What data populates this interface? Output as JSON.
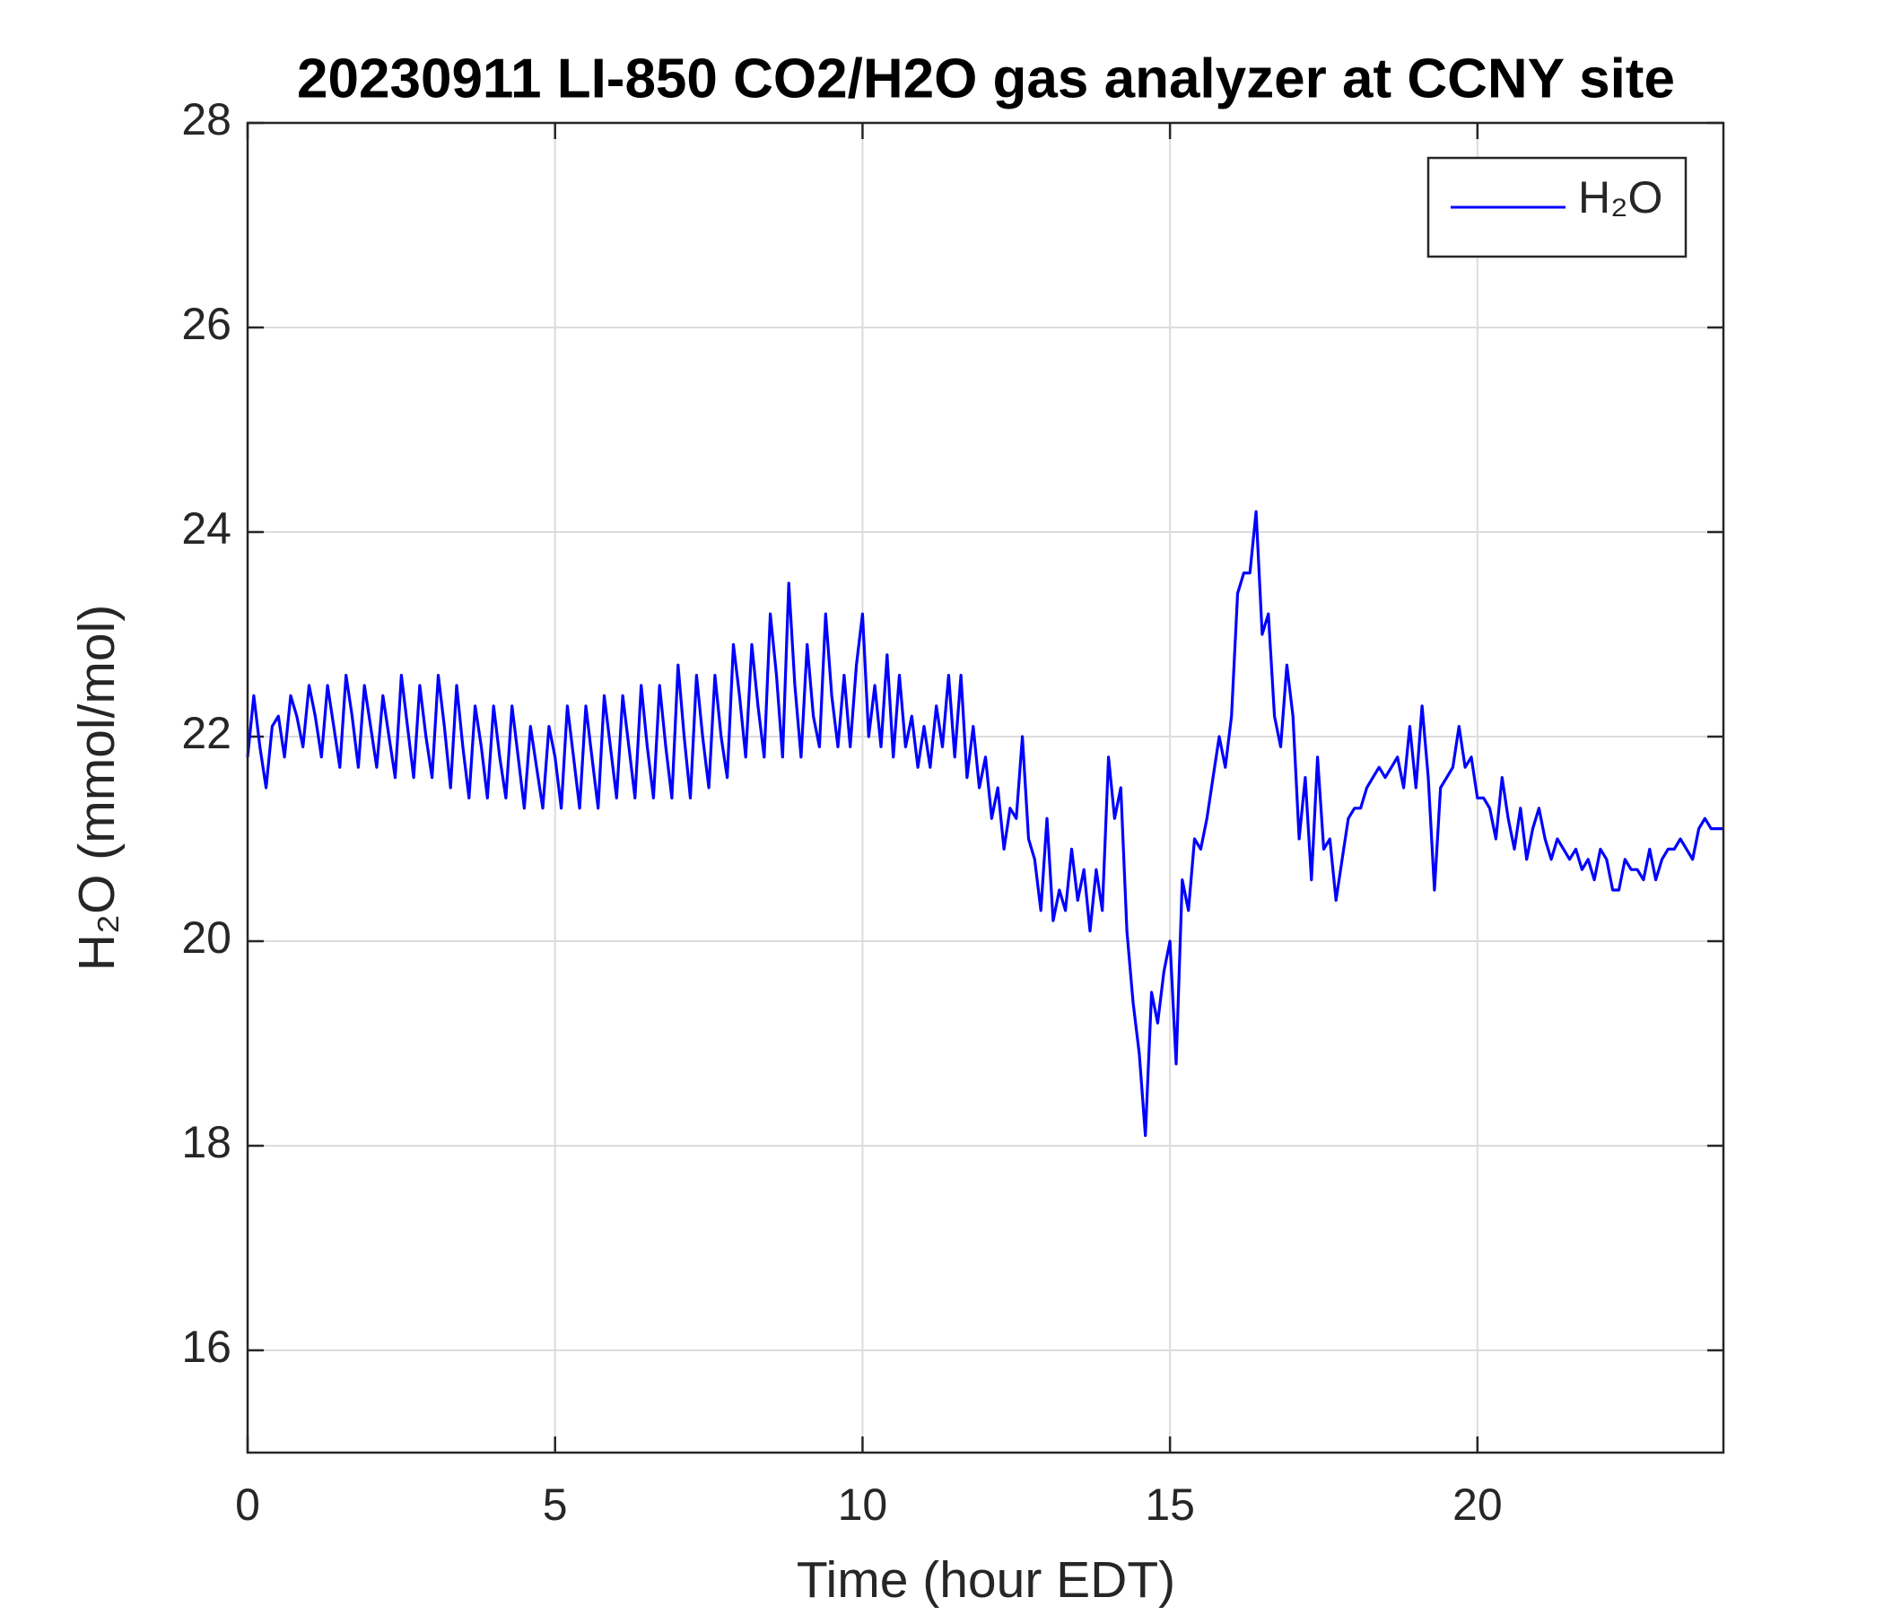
{
  "chart_data": {
    "type": "line",
    "title": "20230911 LI-850 CO2/H2O gas analyzer at CCNY site",
    "xlabel": "Time (hour EDT)",
    "ylabel": "H₂O (mmol/mol)",
    "xlim": [
      0,
      24
    ],
    "ylim": [
      15,
      28
    ],
    "xticks": [
      0,
      5,
      10,
      15,
      20
    ],
    "yticks": [
      16,
      18,
      20,
      22,
      24,
      26,
      28
    ],
    "grid": true,
    "legend": "upper right",
    "x": [
      0,
      0.1,
      0.2,
      0.3,
      0.4,
      0.5,
      0.6,
      0.7,
      0.8,
      0.9,
      1,
      1.1,
      1.2,
      1.3,
      1.4,
      1.5,
      1.6,
      1.7,
      1.8,
      1.9,
      2,
      2.1,
      2.2,
      2.3,
      2.4,
      2.5,
      2.6,
      2.7,
      2.8,
      2.9,
      3,
      3.1,
      3.2,
      3.3,
      3.4,
      3.5,
      3.6,
      3.7,
      3.8,
      3.9,
      4,
      4.1,
      4.2,
      4.3,
      4.4,
      4.5,
      4.6,
      4.7,
      4.8,
      4.9,
      5,
      5.1,
      5.2,
      5.3,
      5.4,
      5.5,
      5.6,
      5.7,
      5.8,
      5.9,
      6,
      6.1,
      6.2,
      6.3,
      6.4,
      6.5,
      6.6,
      6.7,
      6.8,
      6.9,
      7,
      7.1,
      7.2,
      7.3,
      7.4,
      7.5,
      7.6,
      7.7,
      7.8,
      7.9,
      8,
      8.1,
      8.2,
      8.3,
      8.4,
      8.5,
      8.6,
      8.7,
      8.8,
      8.9,
      9,
      9.1,
      9.2,
      9.3,
      9.4,
      9.5,
      9.6,
      9.7,
      9.8,
      9.9,
      10,
      10.1,
      10.2,
      10.3,
      10.4,
      10.5,
      10.6,
      10.7,
      10.8,
      10.9,
      11,
      11.1,
      11.2,
      11.3,
      11.4,
      11.5,
      11.6,
      11.7,
      11.8,
      11.9,
      12,
      12.1,
      12.2,
      12.3,
      12.4,
      12.5,
      12.6,
      12.7,
      12.8,
      12.9,
      13,
      13.1,
      13.2,
      13.3,
      13.4,
      13.5,
      13.6,
      13.7,
      13.8,
      13.9,
      14,
      14.1,
      14.2,
      14.3,
      14.4,
      14.5,
      14.6,
      14.7,
      14.8,
      14.9,
      15,
      15.1,
      15.2,
      15.3,
      15.4,
      15.5,
      15.6,
      15.7,
      15.8,
      15.9,
      16,
      16.1,
      16.2,
      16.3,
      16.4,
      16.5,
      16.6,
      16.7,
      16.8,
      16.9,
      17,
      17.1,
      17.2,
      17.3,
      17.4,
      17.5,
      17.6,
      17.7,
      17.8,
      17.9,
      18,
      18.1,
      18.2,
      18.3,
      18.4,
      18.5,
      18.6,
      18.7,
      18.8,
      18.9,
      19,
      19.1,
      19.2,
      19.3,
      19.4,
      19.5,
      19.6,
      19.7,
      19.8,
      19.9,
      20,
      20.1,
      20.2,
      20.3,
      20.4,
      20.5,
      20.6,
      20.7,
      20.8,
      20.9,
      21,
      21.1,
      21.2,
      21.3,
      21.4,
      21.5,
      21.6,
      21.7,
      21.8,
      21.9,
      22,
      22.1,
      22.2,
      22.3,
      22.4,
      22.5,
      22.6,
      22.7,
      22.8,
      22.9,
      23,
      23.1,
      23.2,
      23.3,
      23.4,
      23.5,
      23.6,
      23.7,
      23.8,
      23.9,
      24
    ],
    "series": [
      {
        "name": "H₂O",
        "color": "#0000ff",
        "values": [
          21.8,
          22.4,
          21.9,
          21.5,
          22.1,
          22.2,
          21.8,
          22.4,
          22.2,
          21.9,
          22.5,
          22.2,
          21.8,
          22.5,
          22.1,
          21.7,
          22.6,
          22.2,
          21.7,
          22.5,
          22.1,
          21.7,
          22.4,
          22.0,
          21.6,
          22.6,
          22.1,
          21.6,
          22.5,
          22.0,
          21.6,
          22.6,
          22.1,
          21.5,
          22.5,
          21.9,
          21.4,
          22.3,
          21.9,
          21.4,
          22.3,
          21.8,
          21.4,
          22.3,
          21.8,
          21.3,
          22.1,
          21.7,
          21.3,
          22.1,
          21.8,
          21.3,
          22.3,
          21.8,
          21.3,
          22.3,
          21.8,
          21.3,
          22.4,
          21.9,
          21.4,
          22.4,
          21.9,
          21.4,
          22.5,
          21.9,
          21.4,
          22.5,
          21.9,
          21.4,
          22.7,
          22.0,
          21.4,
          22.6,
          22.0,
          21.5,
          22.6,
          22.0,
          21.6,
          22.9,
          22.4,
          21.8,
          22.9,
          22.3,
          21.8,
          23.2,
          22.6,
          21.8,
          23.5,
          22.5,
          21.8,
          22.9,
          22.2,
          21.9,
          23.2,
          22.4,
          21.9,
          22.6,
          21.9,
          22.7,
          23.2,
          22.0,
          22.5,
          21.9,
          22.8,
          21.8,
          22.6,
          21.9,
          22.2,
          21.7,
          22.1,
          21.7,
          22.3,
          21.9,
          22.6,
          21.8,
          22.6,
          21.6,
          22.1,
          21.5,
          21.8,
          21.2,
          21.5,
          20.9,
          21.3,
          21.2,
          22.0,
          21.0,
          20.8,
          20.3,
          21.2,
          20.2,
          20.5,
          20.3,
          20.9,
          20.4,
          20.7,
          20.1,
          20.7,
          20.3,
          21.8,
          21.2,
          21.5,
          20.1,
          19.4,
          18.9,
          18.1,
          19.5,
          19.2,
          19.7,
          20.0,
          18.8,
          20.6,
          20.3,
          21.0,
          20.9,
          21.2,
          21.6,
          22.0,
          21.7,
          22.2,
          23.4,
          23.6,
          23.6,
          24.2,
          23.0,
          23.2,
          22.2,
          21.9,
          22.7,
          22.2,
          21.0,
          21.6,
          20.6,
          21.8,
          20.9,
          21.0,
          20.4,
          20.8,
          21.2,
          21.3,
          21.3,
          21.5,
          21.6,
          21.7,
          21.6,
          21.7,
          21.8,
          21.5,
          22.1,
          21.5,
          22.3,
          21.6,
          20.5,
          21.5,
          21.6,
          21.7,
          22.1,
          21.7,
          21.8,
          21.4,
          21.4,
          21.3,
          21.0,
          21.6,
          21.2,
          20.9,
          21.3,
          20.8,
          21.1,
          21.3,
          21.0,
          20.8,
          21.0,
          20.9,
          20.8,
          20.9,
          20.7,
          20.8,
          20.6,
          20.9,
          20.8,
          20.5,
          20.5,
          20.8,
          20.7,
          20.7,
          20.6,
          20.9,
          20.6,
          20.8,
          20.9,
          20.9,
          21.0,
          20.9,
          20.8,
          21.1,
          21.2,
          21.1,
          21.1,
          21.1
        ]
      }
    ]
  }
}
